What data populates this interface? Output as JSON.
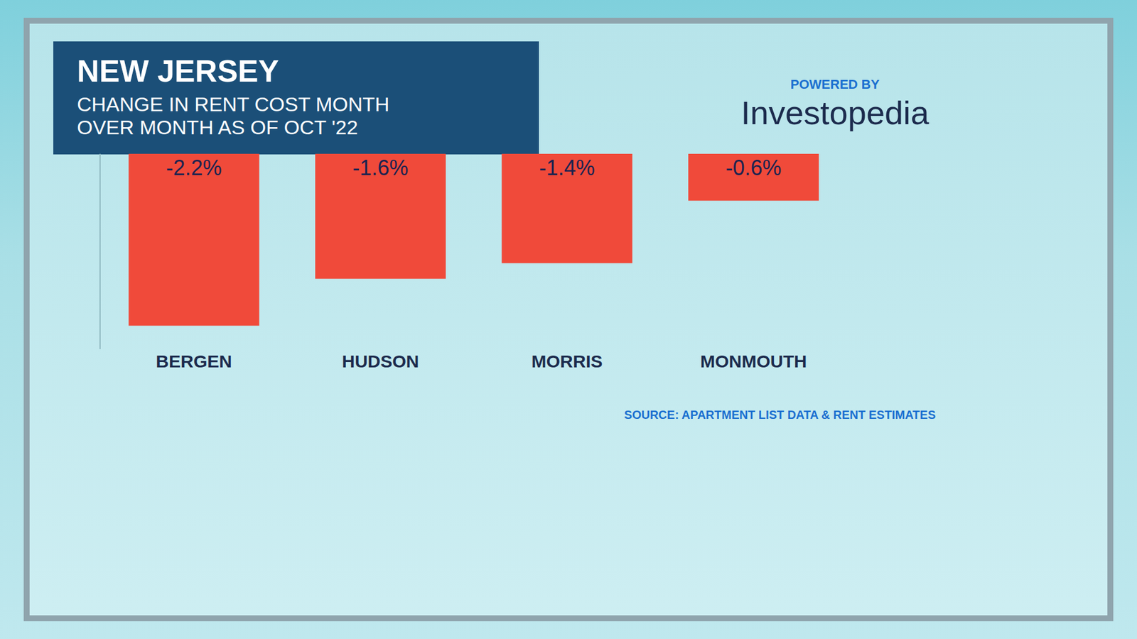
{
  "chart_data": {
    "type": "bar",
    "title": "NEW JERSEY",
    "subtitle": "CHANGE IN RENT COST MONTH OVER MONTH AS OF OCT '22",
    "powered_by": "POWERED BY",
    "brand": "Investopedia",
    "source": "SOURCE: APARTMENT LIST DATA & RENT ESTIMATES",
    "categories": [
      "BERGEN",
      "HUDSON",
      "MORRIS",
      "MONMOUTH"
    ],
    "values": [
      -2.2,
      -1.6,
      -1.4,
      -0.6
    ],
    "value_labels": [
      "-2.2%",
      "-1.6%",
      "-1.4%",
      "-0.6%"
    ],
    "color": "#f04a3a",
    "ylim": [
      -2.5,
      0
    ],
    "yticks": [],
    "grid": false,
    "data_labels": true,
    "tick_labels": "x"
  }
}
